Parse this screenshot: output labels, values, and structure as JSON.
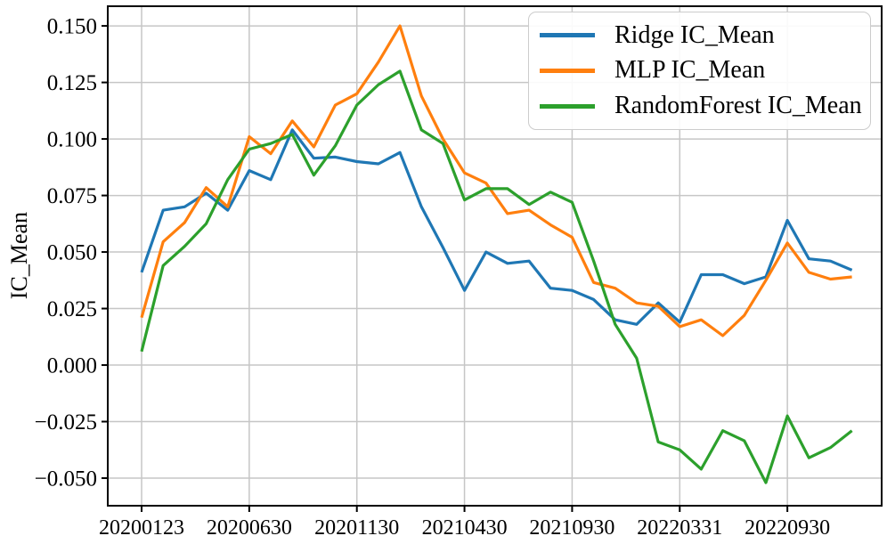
{
  "chart_data": {
    "type": "line",
    "title": "",
    "xlabel": "",
    "ylabel": "IC_Mean",
    "grid": true,
    "legend_position": "upper right",
    "background": "#ffffff",
    "grid_color": "#c6c6c6",
    "spine_color": "#000000",
    "ylim": [
      -0.0622,
      0.1587
    ],
    "xlim_index": [
      -1.572,
      34.38
    ],
    "yticks": [
      0.15,
      0.125,
      0.1,
      0.075,
      0.05,
      0.025,
      0.0,
      -0.025,
      -0.05
    ],
    "ytick_labels": [
      "0.150",
      "0.125",
      "0.100",
      "0.075",
      "0.050",
      "0.025",
      "0.000",
      "−0.025",
      "−0.050"
    ],
    "x_point_count": 34,
    "xtick_indices": [
      0,
      5,
      10,
      15,
      20,
      25,
      30
    ],
    "xtick_labels": [
      "20200123",
      "20200630",
      "20201130",
      "20210430",
      "20210930",
      "20220331",
      "20220930"
    ],
    "series": [
      {
        "name": "Ridge IC_Mean",
        "color": "#1f77b4",
        "values": [
          0.041,
          0.0685,
          0.07,
          0.076,
          0.0685,
          0.086,
          0.082,
          0.104,
          0.0915,
          0.092,
          0.09,
          0.089,
          0.094,
          0.07,
          0.052,
          0.033,
          0.05,
          0.045,
          0.046,
          0.034,
          0.033,
          0.029,
          0.02,
          0.018,
          0.0275,
          0.019,
          0.04,
          0.04,
          0.036,
          0.039,
          0.064,
          0.047,
          0.046,
          0.042
        ]
      },
      {
        "name": "MLP IC_Mean",
        "color": "#ff7f0e",
        "values": [
          0.021,
          0.0545,
          0.063,
          0.0785,
          0.07,
          0.101,
          0.0935,
          0.108,
          0.0965,
          0.115,
          0.12,
          0.134,
          0.15,
          0.119,
          0.1,
          0.085,
          0.0805,
          0.067,
          0.0685,
          0.062,
          0.0565,
          0.0365,
          0.034,
          0.0275,
          0.026,
          0.017,
          0.02,
          0.013,
          0.022,
          0.0375,
          0.054,
          0.041,
          0.038,
          0.039
        ]
      },
      {
        "name": "RandomForest IC_Mean",
        "color": "#2ca02c",
        "values": [
          0.006,
          0.044,
          0.0525,
          0.0625,
          0.082,
          0.0955,
          0.098,
          0.102,
          0.084,
          0.097,
          0.115,
          0.124,
          0.13,
          0.104,
          0.098,
          0.073,
          0.078,
          0.078,
          0.071,
          0.0765,
          0.072,
          0.046,
          0.018,
          0.003,
          -0.034,
          -0.0375,
          -0.046,
          -0.029,
          -0.0335,
          -0.052,
          -0.0225,
          -0.041,
          -0.0365,
          -0.029
        ]
      }
    ]
  }
}
